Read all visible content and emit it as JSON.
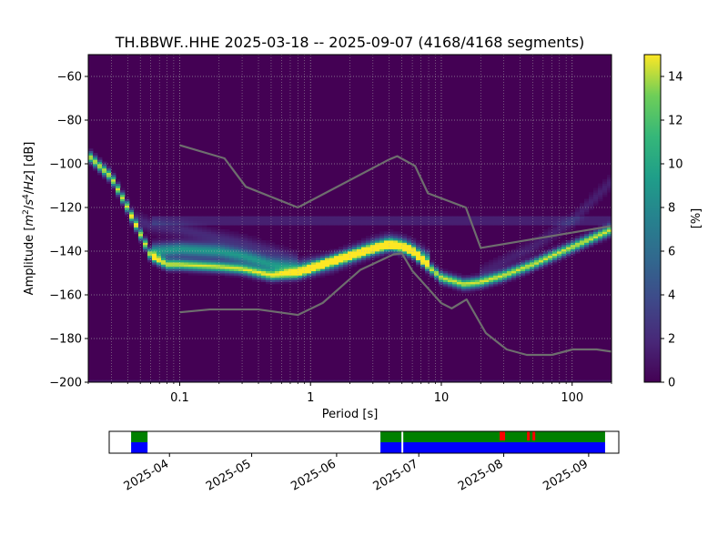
{
  "chart_data": [
    {
      "type": "heatmap",
      "title": "TH.BBWF..HHE   2025-03-18 -- 2025-09-07  (4168/4168 segments)",
      "xlabel": "Period [s]",
      "ylabel_parts": [
        "Amplitude [",
        "m",
        "2",
        "/",
        "s",
        "4",
        "/",
        "Hz",
        "] [dB]"
      ],
      "x_scale": "log",
      "xlim": [
        0.02,
        200
      ],
      "ylim": [
        -200,
        -50
      ],
      "x_ticks": [
        {
          "value": 0.1,
          "label": "0.1"
        },
        {
          "value": 1,
          "label": "1"
        },
        {
          "value": 10,
          "label": "10"
        },
        {
          "value": 100,
          "label": "100"
        }
      ],
      "y_ticks": [
        {
          "value": -60,
          "label": "−60"
        },
        {
          "value": -80,
          "label": "−80"
        },
        {
          "value": -100,
          "label": "−100"
        },
        {
          "value": -120,
          "label": "−120"
        },
        {
          "value": -140,
          "label": "−140"
        },
        {
          "value": -160,
          "label": "−160"
        },
        {
          "value": -180,
          "label": "−180"
        },
        {
          "value": -200,
          "label": "−200"
        }
      ],
      "grid": true,
      "colormap": "viridis",
      "background_color": "#440154",
      "colorbar": {
        "label": "[%]",
        "range": [
          0,
          15
        ],
        "ticks": [
          {
            "value": 0,
            "label": "0"
          },
          {
            "value": 2,
            "label": "2"
          },
          {
            "value": 4,
            "label": "4"
          },
          {
            "value": 6,
            "label": "6"
          },
          {
            "value": 8,
            "label": "8"
          },
          {
            "value": 10,
            "label": "10"
          },
          {
            "value": 12,
            "label": "12"
          },
          {
            "value": 14,
            "label": "14"
          }
        ]
      },
      "density_ridges": [
        {
          "points": [
            [
              0.02,
              -96
            ],
            [
              0.03,
              -106
            ],
            [
              0.04,
              -120
            ],
            [
              0.05,
              -132
            ],
            [
              0.06,
              -142
            ],
            [
              0.08,
              -146
            ],
            [
              0.1,
              -146
            ],
            [
              0.2,
              -147
            ],
            [
              0.3,
              -148
            ],
            [
              0.5,
              -151
            ],
            [
              0.8,
              -150
            ],
            [
              1,
              -148
            ],
            [
              1.5,
              -144
            ],
            [
              2,
              -142
            ],
            [
              3,
              -139
            ],
            [
              4,
              -137
            ],
            [
              5,
              -138
            ],
            [
              6,
              -140
            ],
            [
              8,
              -147
            ],
            [
              10,
              -152
            ],
            [
              15,
              -155
            ],
            [
              20,
              -154
            ],
            [
              30,
              -151
            ],
            [
              50,
              -146
            ],
            [
              100,
              -138
            ],
            [
              200,
              -130
            ]
          ],
          "peak": 14.5
        },
        {
          "points": [
            [
              0.06,
              -140
            ],
            [
              0.1,
              -139
            ],
            [
              0.2,
              -140
            ],
            [
              0.3,
              -142
            ],
            [
              0.5,
              -146
            ],
            [
              0.8,
              -148
            ],
            [
              1,
              -147
            ],
            [
              1.5,
              -145
            ],
            [
              2,
              -142
            ],
            [
              3,
              -138
            ],
            [
              4,
              -136
            ],
            [
              5,
              -137
            ],
            [
              6,
              -139
            ],
            [
              8,
              -144
            ]
          ],
          "peak": 9
        },
        {
          "points": [
            [
              0.04,
              -124
            ],
            [
              0.06,
              -128
            ],
            [
              0.1,
              -130
            ],
            [
              0.3,
              -136
            ],
            [
              0.5,
              -140
            ],
            [
              0.8,
              -144
            ]
          ],
          "peak": 2
        },
        {
          "points": [
            [
              20,
              -150
            ],
            [
              50,
              -138
            ],
            [
              100,
              -126
            ],
            [
              200,
              -108
            ]
          ],
          "peak": 1.5
        }
      ],
      "flat_band": {
        "y": -126,
        "x_from": 0.06,
        "x_to": 200,
        "value": 1.5
      },
      "floor_band": {
        "y": -199.5,
        "value": 1
      },
      "noise_models": [
        {
          "name": "upper",
          "points": [
            [
              0.1,
              -91.5
            ],
            [
              0.22,
              -97.5
            ],
            [
              0.32,
              -110.5
            ],
            [
              0.8,
              -120
            ],
            [
              4,
              -98
            ],
            [
              4.6,
              -96.5
            ],
            [
              6.3,
              -101
            ],
            [
              7.9,
              -113.5
            ],
            [
              15.4,
              -120
            ],
            [
              20,
              -138.5
            ],
            [
              354.8,
              -126
            ]
          ]
        },
        {
          "name": "lower",
          "points": [
            [
              0.1,
              -168
            ],
            [
              0.17,
              -166.7
            ],
            [
              0.4,
              -166.7
            ],
            [
              0.8,
              -169.2
            ],
            [
              1.24,
              -163.7
            ],
            [
              2.4,
              -148.6
            ],
            [
              4.3,
              -141.5
            ],
            [
              5,
              -141
            ],
            [
              6,
              -149
            ],
            [
              10,
              -163.8
            ],
            [
              12,
              -166.2
            ],
            [
              15.6,
              -162.1
            ],
            [
              21.9,
              -177.5
            ],
            [
              31.6,
              -185
            ],
            [
              45,
              -187.5
            ],
            [
              70,
              -187.5
            ],
            [
              101,
              -185
            ],
            [
              154,
              -185
            ],
            [
              200,
              -186
            ]
          ]
        }
      ]
    },
    {
      "type": "timeline",
      "x_ticks": [
        {
          "date": "2025-04-01",
          "label": "2025-04"
        },
        {
          "date": "2025-05-01",
          "label": "2025-05"
        },
        {
          "date": "2025-06-01",
          "label": "2025-06"
        },
        {
          "date": "2025-07-01",
          "label": "2025-07"
        },
        {
          "date": "2025-08-01",
          "label": "2025-08"
        },
        {
          "date": "2025-09-01",
          "label": "2025-09"
        }
      ],
      "xlim": [
        "2025-03-10",
        "2025-09-12"
      ],
      "colors": {
        "data": "#008000",
        "used": "#0000ff",
        "gap": "#ff0000",
        "marker": "#ffffff"
      },
      "data_coverage": [
        [
          "2025-03-18",
          "2025-03-24"
        ],
        [
          "2025-06-17",
          "2025-09-07"
        ]
      ],
      "used_segments": [
        [
          "2025-03-18",
          "2025-03-24"
        ],
        [
          "2025-06-17",
          "2025-09-07"
        ]
      ],
      "gaps": [
        "2025-07-31",
        "2025-08-01",
        "2025-08-10",
        "2025-08-12"
      ],
      "markers": [
        "2025-06-25"
      ]
    }
  ]
}
